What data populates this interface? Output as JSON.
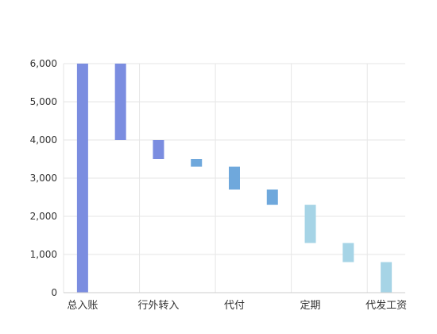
{
  "chart_data": {
    "type": "bar",
    "subtype": "waterfall",
    "title": "",
    "xlabel": "",
    "ylabel": "",
    "ylim": [
      0,
      6000
    ],
    "yticks": [
      0,
      1000,
      2000,
      3000,
      4000,
      5000,
      6000
    ],
    "ytick_labels": [
      "0",
      "1,000",
      "2,000",
      "3,000",
      "4,000",
      "5,000",
      "6,000"
    ],
    "categories": [
      "总入账",
      "",
      "行外转入",
      "",
      "代付",
      "",
      "定期",
      "",
      "代发工资"
    ],
    "bars": [
      {
        "base": 0,
        "top": 6000,
        "color": "#7b8de0"
      },
      {
        "base": 4000,
        "top": 6000,
        "color": "#7b8de0"
      },
      {
        "base": 3500,
        "top": 4000,
        "color": "#7b8de0"
      },
      {
        "base": 3300,
        "top": 3500,
        "color": "#6fa8dc"
      },
      {
        "base": 2700,
        "top": 3300,
        "color": "#6fa8dc"
      },
      {
        "base": 2300,
        "top": 2700,
        "color": "#6fa8dc"
      },
      {
        "base": 1300,
        "top": 2300,
        "color": "#a6d4e6"
      },
      {
        "base": 800,
        "top": 1300,
        "color": "#a6d4e6"
      },
      {
        "base": 0,
        "top": 800,
        "color": "#a6d4e6"
      }
    ],
    "grid": true,
    "colors": {
      "grid": "#e6e6e6",
      "axis": "#cccccc",
      "text": "#333333"
    }
  }
}
